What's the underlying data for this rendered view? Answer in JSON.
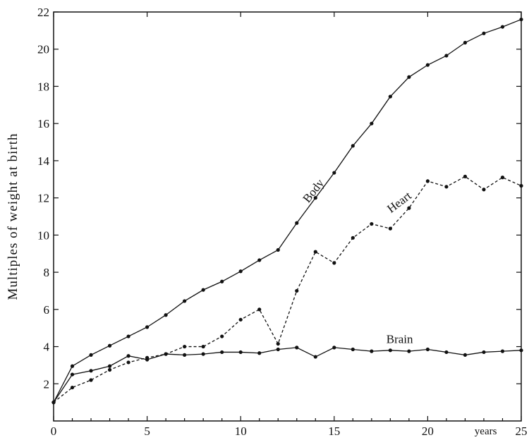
{
  "chart_data": {
    "type": "line",
    "title": "",
    "xlabel": "years",
    "ylabel": "Multiples of weight at birth",
    "xlim": [
      0,
      25
    ],
    "ylim": [
      0,
      22
    ],
    "x_ticks": [
      0,
      5,
      10,
      15,
      20,
      25
    ],
    "y_ticks": [
      2,
      4,
      6,
      8,
      10,
      12,
      14,
      16,
      18,
      20,
      22
    ],
    "grid": false,
    "legend": "none",
    "series": [
      {
        "name": "Body",
        "style": "solid",
        "x": [
          0,
          1,
          2,
          3,
          4,
          5,
          6,
          7,
          8,
          9,
          10,
          11,
          12,
          13,
          14,
          15,
          16,
          17,
          18,
          19,
          20,
          21,
          22,
          23,
          24,
          25
        ],
        "values": [
          1.0,
          2.95,
          3.55,
          4.05,
          4.55,
          5.05,
          5.7,
          6.45,
          7.05,
          7.5,
          8.05,
          8.65,
          9.2,
          10.65,
          12.0,
          13.35,
          14.8,
          16.0,
          17.45,
          18.5,
          19.15,
          19.65,
          20.35,
          20.85,
          21.2,
          21.6
        ]
      },
      {
        "name": "Heart",
        "style": "dashed",
        "x": [
          0,
          1,
          2,
          3,
          4,
          5,
          6,
          7,
          8,
          9,
          10,
          11,
          12,
          13,
          14,
          15,
          16,
          17,
          18,
          19,
          20,
          21,
          22,
          23,
          24,
          25
        ],
        "values": [
          1.0,
          1.8,
          2.2,
          2.75,
          3.15,
          3.4,
          3.6,
          4.0,
          4.0,
          4.55,
          5.45,
          6.0,
          4.15,
          7.0,
          9.1,
          8.5,
          9.85,
          10.6,
          10.35,
          11.45,
          12.9,
          12.6,
          13.15,
          12.45,
          13.1,
          12.65
        ]
      },
      {
        "name": "Brain",
        "style": "solid",
        "x": [
          0,
          1,
          2,
          3,
          4,
          5,
          6,
          7,
          8,
          9,
          10,
          11,
          12,
          13,
          14,
          15,
          16,
          17,
          18,
          19,
          20,
          21,
          22,
          23,
          24,
          25
        ],
        "values": [
          1.0,
          2.5,
          2.7,
          2.95,
          3.5,
          3.3,
          3.6,
          3.55,
          3.6,
          3.7,
          3.7,
          3.65,
          3.85,
          3.95,
          3.45,
          3.95,
          3.85,
          3.75,
          3.8,
          3.75,
          3.85,
          3.7,
          3.55,
          3.7,
          3.75,
          3.8
        ]
      }
    ]
  }
}
